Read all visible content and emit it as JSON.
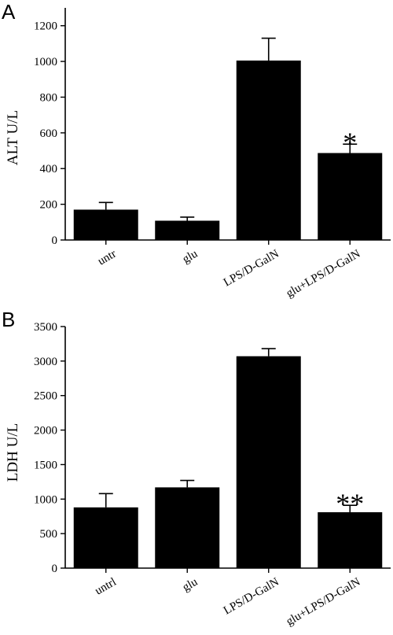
{
  "chart_data": [
    {
      "type": "bar",
      "panel": "A",
      "ylabel": "ALT U/L",
      "xlabel": "",
      "categories": [
        "untr",
        "glu",
        "LPS/D-GalN",
        "glu+LPS/D-GalN"
      ],
      "values": [
        170,
        108,
        1005,
        487
      ],
      "errors": [
        40,
        20,
        125,
        50
      ],
      "annotations": [
        "",
        "",
        "",
        "*"
      ],
      "ylim": [
        0,
        1300
      ],
      "yticks": [
        0,
        200,
        400,
        600,
        800,
        1000,
        1200
      ],
      "grid": false,
      "legend": "none"
    },
    {
      "type": "bar",
      "panel": "B",
      "ylabel": "LDH U/L",
      "xlabel": "",
      "categories": [
        "untrl",
        "glu",
        "LPS/D-GalN",
        "glu+LPS/D-GalN"
      ],
      "values": [
        880,
        1170,
        3070,
        810
      ],
      "errors": [
        200,
        100,
        110,
        100
      ],
      "annotations": [
        "",
        "",
        "",
        "**"
      ],
      "ylim": [
        0,
        3500
      ],
      "yticks": [
        0,
        500,
        1000,
        1500,
        2000,
        2500,
        3000,
        3500
      ],
      "grid": false,
      "legend": "none"
    }
  ]
}
